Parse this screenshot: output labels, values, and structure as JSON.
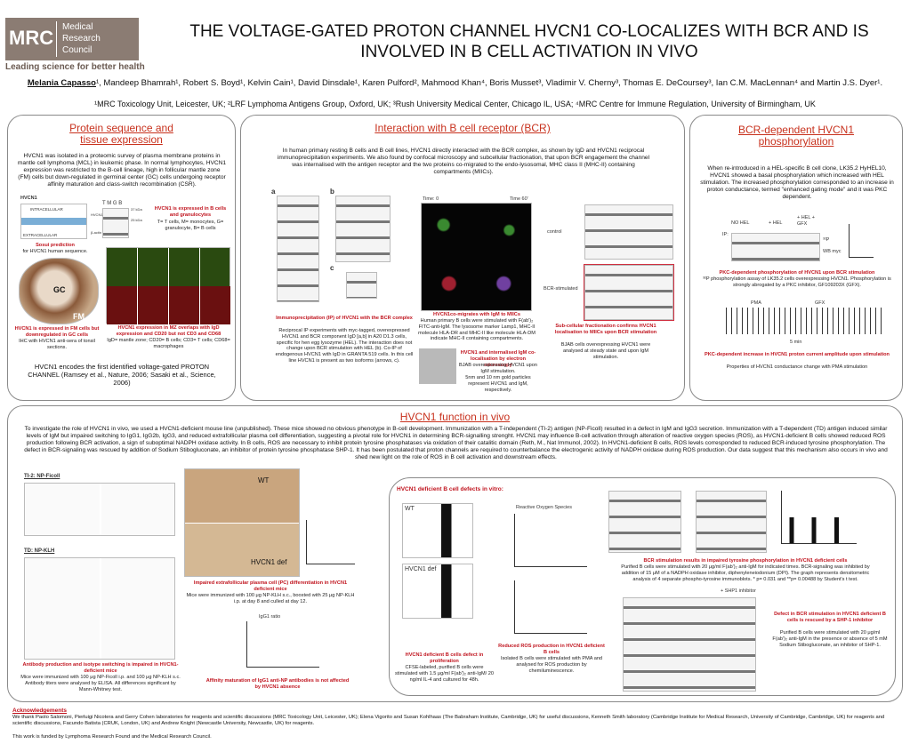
{
  "header": {
    "logo": {
      "mark": "MRC",
      "name": [
        "Medical",
        "Research",
        "Council"
      ],
      "tagline": "Leading science for better health"
    },
    "title": "THE VOLTAGE-GATED PROTON CHANNEL HVCN1 CO-LOCALIZES WITH BCR AND IS INVOLVED IN B CELL ACTIVATION IN VIVO",
    "presenter": "Melania Capasso",
    "authors": "¹, Mandeep Bhamrah¹, Robert S. Boyd¹, Kelvin Cain¹, David Dinsdale¹, Karen Pulford², Mahmood Khan⁴, Boris Musset³, Vladimir V. Cherny³, Thomas E. DeCoursey³, Ian C.M. MacLennan⁴ and Martin J.S. Dyer¹.",
    "affiliations": "¹MRC Toxicology Unit, Leicester, UK; ²LRF Lymphoma Antigens Group, Oxford, UK; ³Rush University Medical Center, Chicago IL, USA; ⁴MRC Centre for Immune Regulation, University of Birmingham, UK"
  },
  "left_panel": {
    "title": "Protein sequence and tissue expression",
    "text": "HVCN1 was isolated in a proteomic survey of plasma membrane proteins in mantle cell lymphoma (MCL) in leukemic phase. In normal lymphocytes, HVCN1 expression was restricted to the B-cell lineage, high in follicular mantle zone (FM) cells but down-regulated in germinal center (GC) cells undergoing receptor affinity maturation and class-switch recombination (CSR).",
    "topology": {
      "label": "HVCN1",
      "intracellular": "INTRACELLULAR",
      "extracellular": "EXTRACELLULAR",
      "caption": "Sosui prediction",
      "subcaption": "for HVCN1 human sequence."
    },
    "blot": {
      "lanes": "T M G B",
      "kda1": "37 kDa",
      "kda2": "25 kDa",
      "row1": "HVCN1",
      "row2": "β-actin",
      "caption": "HVCN1 is expressed in B cells and granulocytes",
      "subcaption": "T= T cells, M= monocytes, G= granulocyte, B= B cells"
    },
    "ihc": {
      "gc": "GC",
      "fm": "FM",
      "caption": "HVCN1 is expressed in FM cells but downregulated in GC cells",
      "subcaption": "IHC with HVCN1 anti-sera of tonsil sections."
    },
    "confocal": {
      "caption": "HVCN1 expression in MZ overlaps with IgD expression and CD20 but not CD3 and CD68",
      "subcaption": "IgD= mantle zone; CD20= B cells; CD3= T cells; CD68= macrophages"
    },
    "footer": "HVCN1 encodes the first identified voltage-gated PROTON CHANNEL (Ramsey et al., Nature, 2006; Sasaki et al., Science, 2006)"
  },
  "middle_panel": {
    "title": "Interaction with B cell receptor (BCR)",
    "text": "In human primary resting B cells and B cell lines, HVCN1 directly interacted with the BCR complex, as shown by IgD and HVCN1 reciprocal immunoprecipitation experiments. We also found by confocal microscopy and subcellular fractionation, that upon BCR engagement the channel was internalised with the antigen receptor and the two proteins co-migrated to the endo-lysosomal, MHC class II (MHC-II) containing compartments (MIICs).",
    "ip": {
      "a": "a",
      "b": "b",
      "c": "c",
      "caption": "Immunoprecipitation (IP) of HVCN1 with the BCR complex",
      "subcaption": "Reciprocal IP experiments with myc-tagged, overexpressed HVCN1 and BCR component IgD [a,b] in A20 D1.3 cells, specific for hen egg lysozyme (HEL). The interaction does not change upon BCR stimulation with HEL (b). Co-IP of endogenous HVCN1 with IgD in GRANTA 519 cells. In this cell line HVCN1 is present as two isoforms (arrows, c)."
    },
    "confocal": {
      "t0": "Time: 0",
      "t60": "Time 60'",
      "caption": "HVCN1co-migrates with IgM to MIICs",
      "subcaption": "Human primary B cells were stimulated with F(ab')₂ FITC-anti-IgM. The lysosome marker Lamp1, MHC-II molecule HLA-DR and MHC-II like molecule HLA-DM indicate MHC-II containing compartments."
    },
    "em": {
      "caption": "HVCN1 and internalised IgM co-localisation by electron microscopy",
      "subcaption": "BJAB overexpressing HVCN1 upon IgM stimulation.",
      "note": "5nm and 10 nm gold particles represent HVCN1 and IgM, respectively."
    },
    "fractionation": {
      "control": "control",
      "stimulated": "BCR-stimulated",
      "caption": "Sub-cellular fractionation confirms HVCN1 localisation to MIICs upon BCR stimulation",
      "subcaption": "BJAB cells overexpressing HVCN1 were analysed at steady state and upon IgM stimulation."
    }
  },
  "right_panel": {
    "title": "BCR-dependent HVCN1 phosphorylation",
    "text": "When re-introduced in a HEL-specific B cell clone, LK35.2 HyHEL10, HVCN1 showed a basal phosphorylation which increased with HEL stimulation. The increased phosphorylation corresponded to an increase in proton conductance, termed \"enhanced gating mode\" and it was PKC dependent.",
    "blot": {
      "no_hel": "NO HEL",
      "hel": "+ HEL",
      "hel_gfx": "+ HEL + GFX",
      "ip": "IP:",
      "p32": "³²P",
      "wb": "WB myc"
    },
    "phospho_caption": "PKC-dependent phosphorylation of HVCN1 upon BCR stimulation",
    "phospho_subcaption": "³²P phosphorylation assay of LK35.2 cells overexpressing HVCN1. Phosphorylation is strongly abrogated by a PKC inhibitor, GF109203X (GFX).",
    "traces": {
      "pma": "PMA",
      "gfx": "GFX",
      "scale": "5 min"
    },
    "current_caption": "PKC-dependent increase in HVCN1 proton current amplitude upon stimulation",
    "current_subcaption": "Properties of HVCN1 conductance change with PMA stimulation"
  },
  "bottom_panel": {
    "title": "HVCN1 function in vivo",
    "text": "To investigate the role of HVCN1 in vivo, we used a HVCN1-deficient mouse line (unpublished). These mice showed no obvious phenotype in B-cell development.  Immunization with a T-independent (TI-2) antigen (NP-Ficoll) resulted in a defect in IgM and IgG3 secretion. Immunization with a T-dependent (TD) antigen induced similar levels of IgM but impaired switching to IgG1, IgG2b, IgG3, and reduced extrafollicular plasma cell differentiation, suggesting a pivotal role for HVCN1 in determining BCR-signalling strenght. HVCN1 may influence B-cell activation through alteration of reactive oxygen species (ROS), as HVCN1-deficient B cells showed reduced ROS production following BCR activation, a sign of suboptimal NADPH oxidase activity. In B cells, ROS are necessary to inhibit protein tyrosine phosphatases via oxidation of their catalitic domain (Reth, M., Nat Immunol, 2002). In HVCN1-deficient B cells, ROS levels corresponded to reduced BCR-induced tyrosine phosphorylation. The defect in BCR-signaling was rescued by addition of Sodium Stibogluconate, an inhibitor of  protein tyrosine phosphatase SHP-1. It has been postulated that proton channels are required to counterbalance the electrogenic activity of NADPH oxidase during ROS production. Our data suggest that this mechanism also occurs in vivo and shed new light on the role of ROS in B cell activation and downstream effects.",
    "ti2": "TI-2: NP-Ficoll",
    "td": "TD: NP-KLH",
    "antibody_caption": "Antibody production and isotype switching is impaired in HVCN1-deficient mice",
    "antibody_subcaption": "Mice were immunized with 100 μg NP-Ficoll i.p. and 100 μg NP-KLH s.c. Antibody titers were analysed by ELISA. All differences significant by Mann-Whitney test.",
    "pc": {
      "wt": "WT",
      "def": "HVCN1 def",
      "caption": "Impaired extrafollicular plasma cell (PC) differentiation in HVCN1 deficient mice",
      "subcaption": "Mice were immunized with 100 μg NP-KLH s.c., boosted with 25 μg NP-KLH i.p. at day 8 and culled at day 12."
    },
    "affinity": {
      "title": "IgG1 ratio",
      "caption": "Affinity maturation of IgG1 anti-NP antibodies is not affected by HVCN1 absence"
    },
    "in_vitro": {
      "heading": "HVCN1 deficient B cell defects in vitro:",
      "flow_wt": "WT",
      "flow_def": "HVCN1 def",
      "prolif_caption": "HVCN1 deficient B cells defect in proliferation",
      "prolif_subcaption": "CFSE-labeled, purified B cells were stimulated with 1.5 μg/ml F(ab')₂ anti-IgM/ 20 ng/ml IL-4 and cultured for 48h.",
      "ros_title": "Reactive Oxygen Species",
      "ros_caption": "Reduced ROS production in HVCN1 deficient B cells",
      "ros_subcaption": "Isolated B cells were stimulated with PMA and analysed for ROS production by chemiluminescence.",
      "ptyr_caption": "BCR stimulation results in impaired tyrosine phosphorylation in HVCN1 deficient cells",
      "ptyr_subcaption": "Purified B cells were stimulated with 20 μg/ml F(ab')₂ anti-IgM for indicated times. BCR-signaling was inhibited by addition of 15 μM of a NADPH oxidase inhibitor, diphenyleneiodonium (DPI). The graph represents densitometric analysis of 4 separate phospho-tyrosine immunoblots. * p= 0.031 and **p= 0.00488 by Student's t test.",
      "shp1_label": "+ SHP1 inhibitor",
      "rescue_caption": "Defect in BCR stimulation in HVCN1 deficient B cells is rescued by a SHP-1 inhibitor",
      "rescue_subcaption": "Purified B cells were stimulated with 20 μg/ml F(ab')₂ anti-IgM in the presence or absence of 5 mM Sodium Stibogluconate, an inhibitor of SHP-1."
    }
  },
  "acknowledgements": {
    "title": "Acknowledgements",
    "text": "We thank Paolo Salomoni, Pierluigi Nicotera and Gerry Cohen laboratories for reagents and scientific discussions (MRC Toxicology Unit, Leicester, UK); Elena Vigorito and Susan Kohlhaas (The Babraham Institute, Cambridge, UK) for useful discussions, Kenneth Smith laboratory (Cambridge Institute for Medical Research, University of Cambridge, Cambridge, UK) for reagents and scientific discussions, Facundo Batista (CRUK, London, UK) and Andrew Knight (Newcastle University, Newcastle, UK) for reagents.",
    "funding": "This work is funded by Lymphoma Research Found and the Medical Research Council."
  }
}
